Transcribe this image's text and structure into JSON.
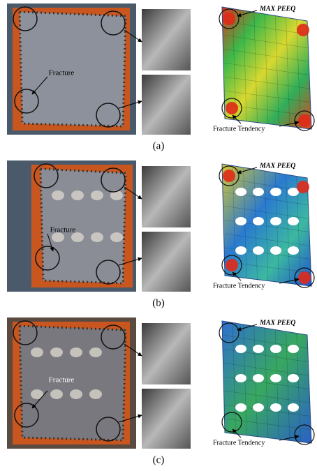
{
  "panels": [
    {
      "label": "(a)",
      "photo_annotation": "Fracture",
      "fem_peak": "MAX PEEQ",
      "fem_annotation": "Fracture Tendency"
    },
    {
      "label": "(b)",
      "photo_annotation": "Fracture",
      "fem_peak": "MAX PEEQ",
      "fem_annotation": "Fracture Tendency"
    },
    {
      "label": "(c)",
      "photo_annotation": "Fracture",
      "fem_peak": "MAX PEEQ",
      "fem_annotation": "Fracture Tendency"
    }
  ]
}
